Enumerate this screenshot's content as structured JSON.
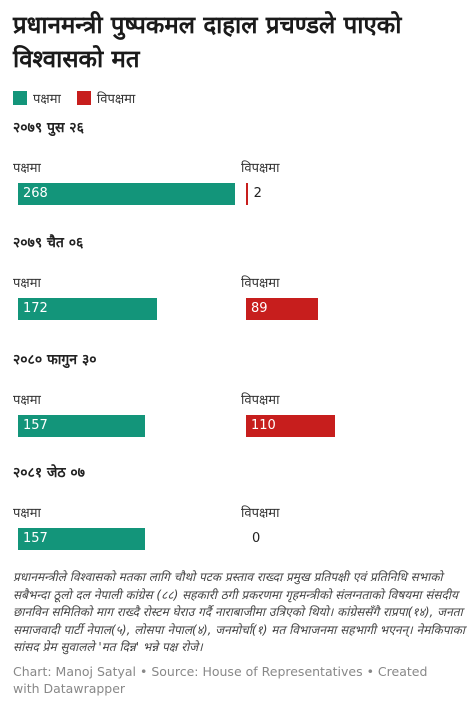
{
  "title": "प्रधानमन्त्री पुष्पकमल दाहाल प्रचण्डले पाएको विश्वासको मत",
  "note": "प्रधानमन्त्रीले विश्वासको मतका लागि चौथो पटक प्रस्ताव राख्दा प्रमुख प्रतिपक्षी एवं प्रतिनिधि सभाको सबैभन्दा ठूलो दल नेपाली कांग्रेस (८८) सहकारी ठगी प्रकरणमा गृहमन्त्रीको संलग्नताको विषयमा संसदीय छानविन समितिको माग राख्दै रोस्टम घेराउ गर्दै नाराबाजीमा उत्रिएको थियो। कांग्रेससँगै राप्रपा(१४), जनता समाजवादी पार्टी नेपाल(५), लोसपा नेपाल(४), जनमोर्चा(१) मत विभाजनमा सहभागी भएनन्। नेमकिपाका सांसद प्रेम सुवालले 'मत दिन्न' भन्ने पक्ष रोजे।",
  "footer": "Chart: Manoj Satyal • Source: House of Representatives • Created with Datawrapper",
  "colors": {
    "favor": "#13957a",
    "against": "#c71e1d"
  },
  "chart_data": {
    "type": "bar",
    "legend": [
      "पक्षमा",
      "विपक्षमा"
    ],
    "legend_position": "top-left",
    "column_labels": {
      "favor": "पक्षमा",
      "against": "विपक्षमा"
    },
    "max_value": 268,
    "groups": [
      {
        "title": "२०७९ पुस २६",
        "favor": 268,
        "against": 2
      },
      {
        "title": "२०७९ चैत ०६",
        "favor": 172,
        "against": 89
      },
      {
        "title": "२०८० फागुन ३०",
        "favor": 157,
        "against": 110
      },
      {
        "title": "२०८१ जेठ ०७",
        "favor": 157,
        "against": 0
      }
    ]
  }
}
